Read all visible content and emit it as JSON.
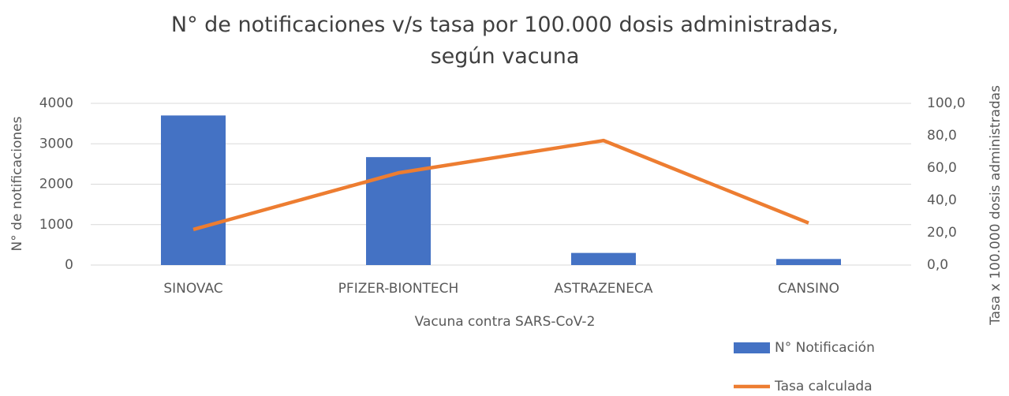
{
  "chart_data": {
    "type": "bar_line",
    "title": "N° de notificaciones  v/s tasa por 100.000 dosis administradas, según vacuna",
    "categories": [
      "SINOVAC",
      "PFIZER-BIONTECH",
      "ASTRAZENECA",
      "CANSINO"
    ],
    "series": [
      {
        "name": "N° Notificación",
        "type": "bar",
        "color": "#4472c4",
        "values": [
          3700,
          2670,
          300,
          150
        ]
      },
      {
        "name": "Tasa calculada",
        "type": "line",
        "axis": "y2",
        "color": "#ed7d31",
        "values": [
          22,
          57,
          77,
          26
        ]
      }
    ],
    "xlabel": "Vacuna contra  SARS-CoV-2",
    "ylabel": "N° de notificaciones",
    "y2label": "Tasa x 100.000 dosis administradas",
    "ylim": [
      0,
      4000
    ],
    "yticks": [
      0,
      1000,
      2000,
      3000,
      4000
    ],
    "y2lim": [
      0,
      100
    ],
    "y2ticks": [
      {
        "value": 0,
        "label": "0,0"
      },
      {
        "value": 20,
        "label": "20,0"
      },
      {
        "value": 40,
        "label": "40,0"
      },
      {
        "value": 60,
        "label": "60,0"
      },
      {
        "value": 80,
        "label": "80,0"
      },
      {
        "value": 100,
        "label": "100,0"
      }
    ],
    "grid": true,
    "legend": "bottom-right"
  }
}
